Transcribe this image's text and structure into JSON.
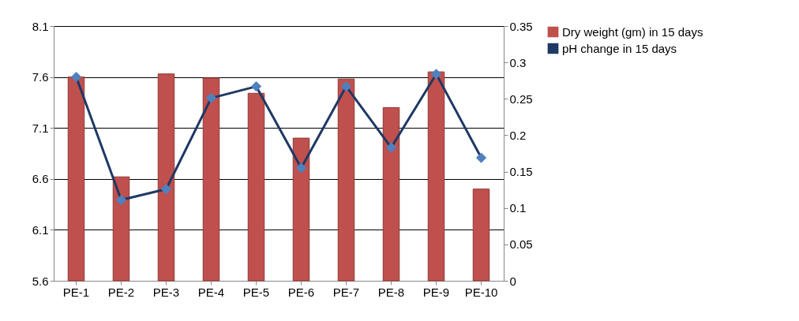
{
  "chart_data": {
    "type": "bar",
    "categories": [
      "PE-1",
      "PE-2",
      "PE-3",
      "PE-4",
      "PE-5",
      "PE-6",
      "PE-7",
      "PE-8",
      "PE-9",
      "PE-10"
    ],
    "series": [
      {
        "name": "Dry weight (gm) in 15 days",
        "color": "#c0504d",
        "values": [
          7.6,
          6.62,
          7.63,
          7.59,
          7.44,
          7.0,
          7.58,
          7.3,
          7.65,
          6.5
        ]
      },
      {
        "name": "pH change in 15 days",
        "type": "line",
        "axis": "y2",
        "color": "#1f3864",
        "values": [
          0.28,
          0.111,
          0.126,
          0.251,
          0.267,
          0.155,
          0.267,
          0.183,
          0.284,
          0.169
        ]
      }
    ],
    "ylim": [
      5.6,
      8.1
    ],
    "yticks": [
      5.6,
      6.1,
      6.6,
      7.1,
      7.6,
      8.1
    ],
    "y2lim": [
      0,
      0.35
    ],
    "y2ticks": [
      0,
      0.05,
      0.1,
      0.15,
      0.2,
      0.25,
      0.3,
      0.35
    ],
    "grid": "y",
    "legend": "right",
    "marker": "diamond"
  }
}
